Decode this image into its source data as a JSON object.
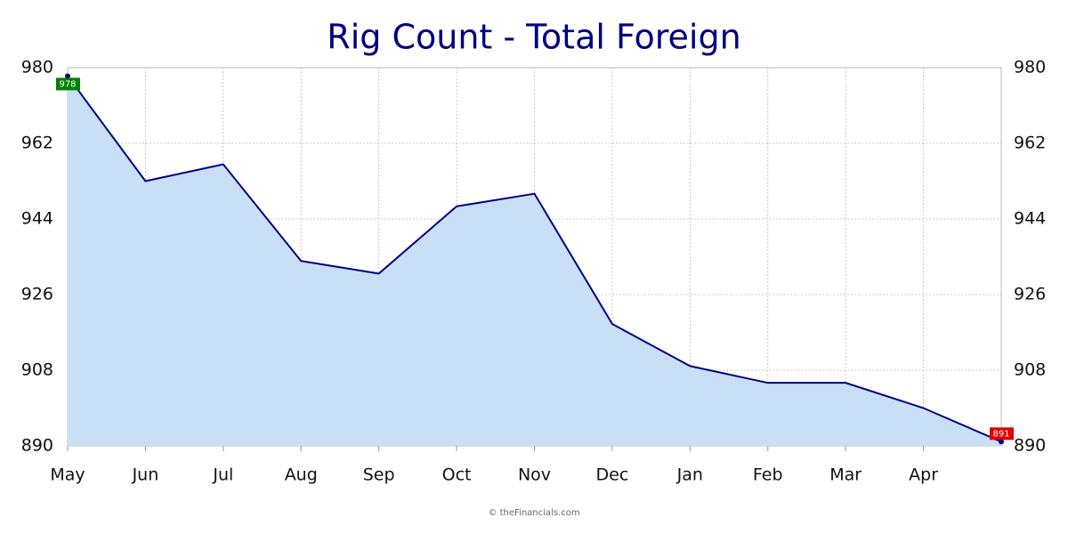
{
  "chart_data": {
    "type": "area",
    "title": "Rig Count - Total Foreign",
    "categories": [
      "May",
      "Jun",
      "Jul",
      "Aug",
      "Sep",
      "Oct",
      "Nov",
      "Dec",
      "Jan",
      "Feb",
      "Mar",
      "Apr",
      null
    ],
    "values": [
      978,
      953,
      957,
      934,
      931,
      947,
      950,
      919,
      909,
      905,
      905,
      899,
      891
    ],
    "color": "#000080",
    "fill": "#c9dff6",
    "ylim": [
      890,
      980
    ],
    "yticks": [
      890,
      908,
      926,
      944,
      962,
      980
    ],
    "grid": true,
    "first_label_color": "#008000",
    "last_label_color": "#e00000",
    "footer": "© theFinancials.com"
  }
}
